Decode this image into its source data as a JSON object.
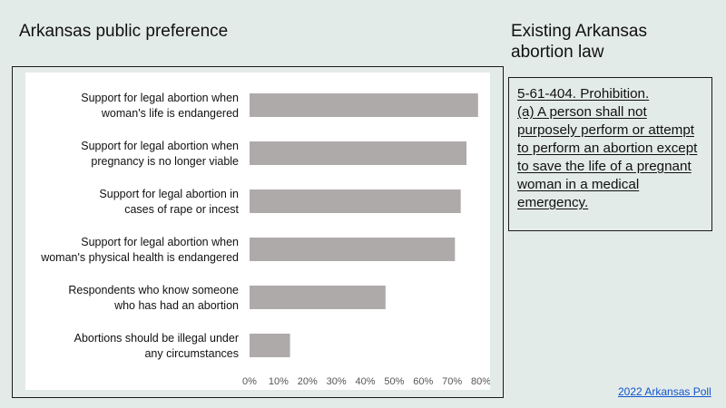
{
  "titles": {
    "left": "Arkansas public preference",
    "right": "Existing Arkansas abortion law"
  },
  "law": {
    "text": "5-61-404. Prohibition.\n(a)  A person shall not purposely perform or attempt to perform an abortion except to save the life of a pregnant woman in a medical emergency. "
  },
  "source": {
    "label": "2022 Arkansas Poll"
  },
  "colors": {
    "bar": "#aeaaa9",
    "background": "#e3ebe9",
    "link": "#1155cc"
  },
  "chart_data": {
    "type": "bar",
    "orientation": "horizontal",
    "categories": [
      [
        "Support for legal abortion when",
        "woman's life is endangered"
      ],
      [
        "Support for legal abortion when",
        "pregnancy is no longer viable"
      ],
      [
        "Support for legal abortion in",
        "cases of rape or incest"
      ],
      [
        "Support for legal abortion when",
        "woman's physical health is endangered"
      ],
      [
        "Respondents who know someone",
        "who has had an abortion"
      ],
      [
        "Abortions should be illegal under",
        "any circumstances"
      ]
    ],
    "values": [
      79,
      75,
      73,
      71,
      47,
      14
    ],
    "unit": "%",
    "xlim": [
      0,
      80
    ],
    "xticks": [
      "0%",
      "10%",
      "20%",
      "30%",
      "40%",
      "50%",
      "60%",
      "70%",
      "80%"
    ],
    "grid": false,
    "legend": "none"
  }
}
